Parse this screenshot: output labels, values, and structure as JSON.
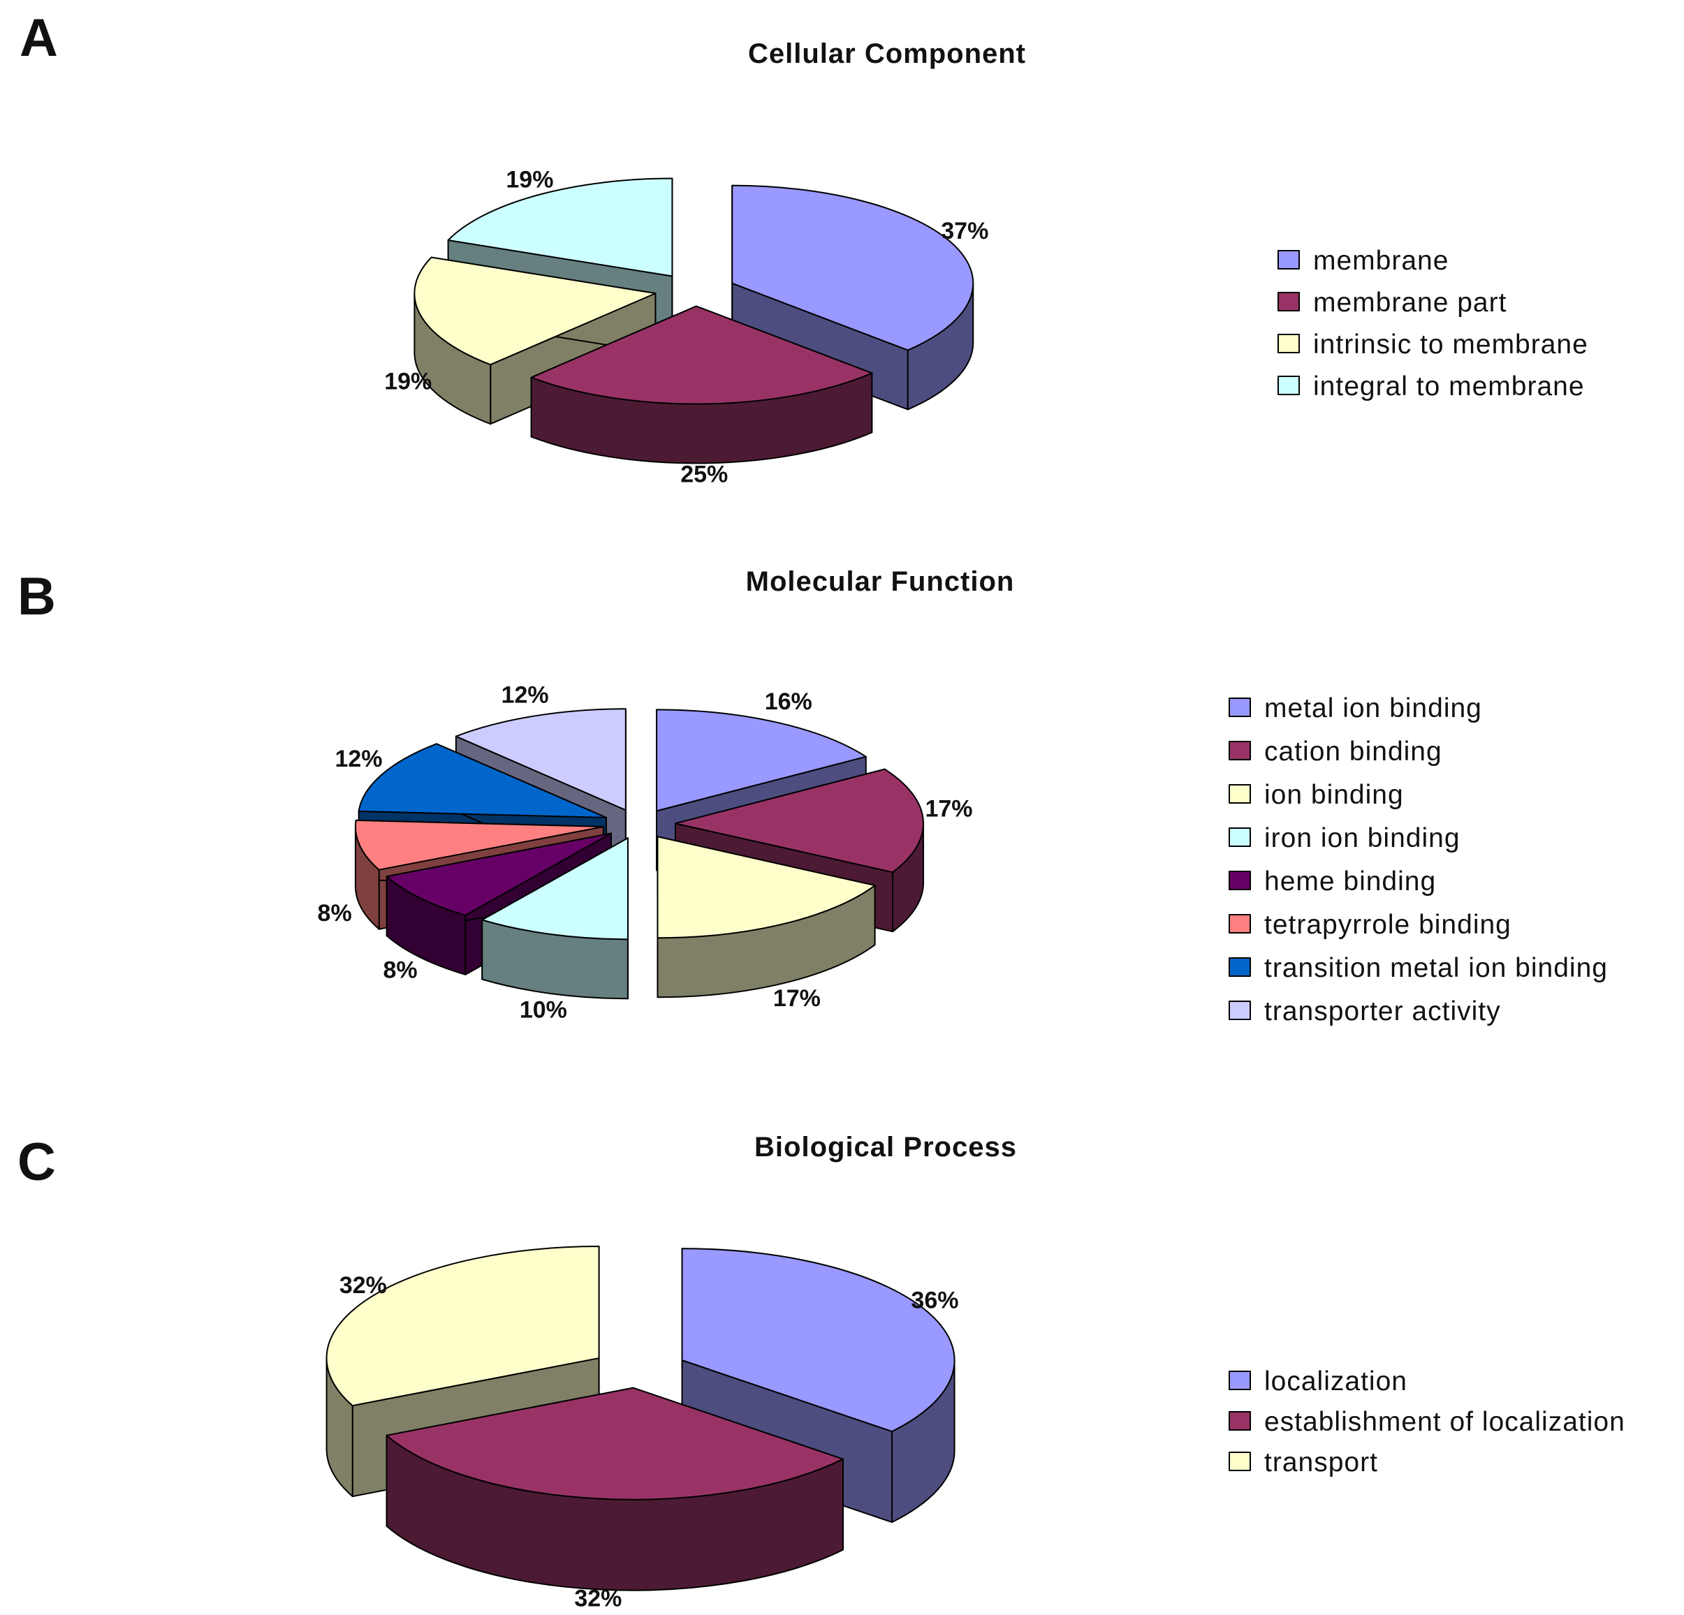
{
  "chart_data": [
    {
      "type": "pie",
      "panel": "A",
      "title": "Cellular Component",
      "legend_position": "right",
      "slices": [
        {
          "label": "membrane",
          "value": 37,
          "value_label": "37%",
          "color": "#9999ff",
          "side_color": "#4d4d80"
        },
        {
          "label": "membrane part",
          "value": 25,
          "value_label": "25%",
          "color": "#993366",
          "side_color": "#4d1a33"
        },
        {
          "label": "intrinsic to membrane",
          "value": 19,
          "value_label": "19%",
          "color": "#ffffcc",
          "side_color": "#808066"
        },
        {
          "label": "integral to membrane",
          "value": 19,
          "value_label": "19%",
          "color": "#ccffff",
          "side_color": "#668080"
        }
      ]
    },
    {
      "type": "pie",
      "panel": "B",
      "title": "Molecular Function",
      "legend_position": "right",
      "slices": [
        {
          "label": "metal ion binding",
          "value": 16,
          "value_label": "16%",
          "color": "#9999ff",
          "side_color": "#4d4d80"
        },
        {
          "label": "cation binding",
          "value": 17,
          "value_label": "17%",
          "color": "#993366",
          "side_color": "#4d1a33"
        },
        {
          "label": "ion binding",
          "value": 17,
          "value_label": "17%",
          "color": "#ffffcc",
          "side_color": "#808066"
        },
        {
          "label": "iron ion binding",
          "value": 10,
          "value_label": "10%",
          "color": "#ccffff",
          "side_color": "#668080"
        },
        {
          "label": "heme binding",
          "value": 8,
          "value_label": "8%",
          "color": "#660066",
          "side_color": "#330033"
        },
        {
          "label": "tetrapyrrole binding",
          "value": 8,
          "value_label": "8%",
          "color": "#ff8080",
          "side_color": "#804040"
        },
        {
          "label": "transition metal ion binding",
          "value": 12,
          "value_label": "12%",
          "color": "#0066cc",
          "side_color": "#003366"
        },
        {
          "label": "transporter activity",
          "value": 12,
          "value_label": "12%",
          "color": "#ccccff",
          "side_color": "#666680"
        }
      ]
    },
    {
      "type": "pie",
      "panel": "C",
      "title": "Biological Process",
      "legend_position": "right",
      "slices": [
        {
          "label": "localization",
          "value": 36,
          "value_label": "36%",
          "color": "#9999ff",
          "side_color": "#4d4d80"
        },
        {
          "label": "establishment of localization",
          "value": 32,
          "value_label": "32%",
          "color": "#993366",
          "side_color": "#4d1a33"
        },
        {
          "label": "transport",
          "value": 32,
          "value_label": "32%",
          "color": "#ffffcc",
          "side_color": "#808066"
        }
      ]
    }
  ]
}
